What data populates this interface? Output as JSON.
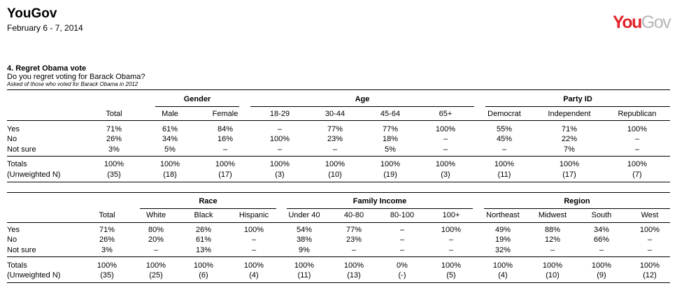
{
  "header": {
    "brand": "YouGov",
    "date": "February 6 - 7, 2014",
    "logo_you": "You",
    "logo_gov": "Gov"
  },
  "question": {
    "title": "4. Regret Obama vote",
    "text": "Do you regret voting for Barack Obama?",
    "note": "Asked of those who voted for Barack Obama in 2012"
  },
  "row_labels": [
    "Yes",
    "No",
    "Not sure",
    "Totals",
    "(Unweighted N)"
  ],
  "table1": {
    "groups": [
      "Gender",
      "Age",
      "Party ID"
    ],
    "columns": [
      "Total",
      "Male",
      "Female",
      "18-29",
      "30-44",
      "45-64",
      "65+",
      "Democrat",
      "Independent",
      "Republican"
    ],
    "rows": [
      [
        "71%",
        "61%",
        "84%",
        "–",
        "77%",
        "77%",
        "100%",
        "55%",
        "71%",
        "100%"
      ],
      [
        "26%",
        "34%",
        "16%",
        "100%",
        "23%",
        "18%",
        "–",
        "45%",
        "22%",
        "–"
      ],
      [
        "3%",
        "5%",
        "–",
        "–",
        "–",
        "5%",
        "–",
        "–",
        "7%",
        "–"
      ],
      [
        "100%",
        "100%",
        "100%",
        "100%",
        "100%",
        "100%",
        "100%",
        "100%",
        "100%",
        "100%"
      ],
      [
        "(35)",
        "(18)",
        "(17)",
        "(3)",
        "(10)",
        "(19)",
        "(3)",
        "(11)",
        "(17)",
        "(7)"
      ]
    ]
  },
  "table2": {
    "groups": [
      "Race",
      "Family Income",
      "Region"
    ],
    "columns": [
      "Total",
      "White",
      "Black",
      "Hispanic",
      "Under 40",
      "40-80",
      "80-100",
      "100+",
      "Northeast",
      "Midwest",
      "South",
      "West"
    ],
    "rows": [
      [
        "71%",
        "80%",
        "26%",
        "100%",
        "54%",
        "77%",
        "–",
        "100%",
        "49%",
        "88%",
        "34%",
        "100%"
      ],
      [
        "26%",
        "20%",
        "61%",
        "–",
        "38%",
        "23%",
        "–",
        "–",
        "19%",
        "12%",
        "66%",
        "–"
      ],
      [
        "3%",
        "–",
        "13%",
        "–",
        "9%",
        "–",
        "–",
        "–",
        "32%",
        "–",
        "–",
        "–"
      ],
      [
        "100%",
        "100%",
        "100%",
        "100%",
        "100%",
        "100%",
        "0%",
        "100%",
        "100%",
        "100%",
        "100%",
        "100%"
      ],
      [
        "(35)",
        "(25)",
        "(6)",
        "(4)",
        "(11)",
        "(13)",
        "(-)",
        "(5)",
        "(4)",
        "(10)",
        "(9)",
        "(12)"
      ]
    ]
  }
}
